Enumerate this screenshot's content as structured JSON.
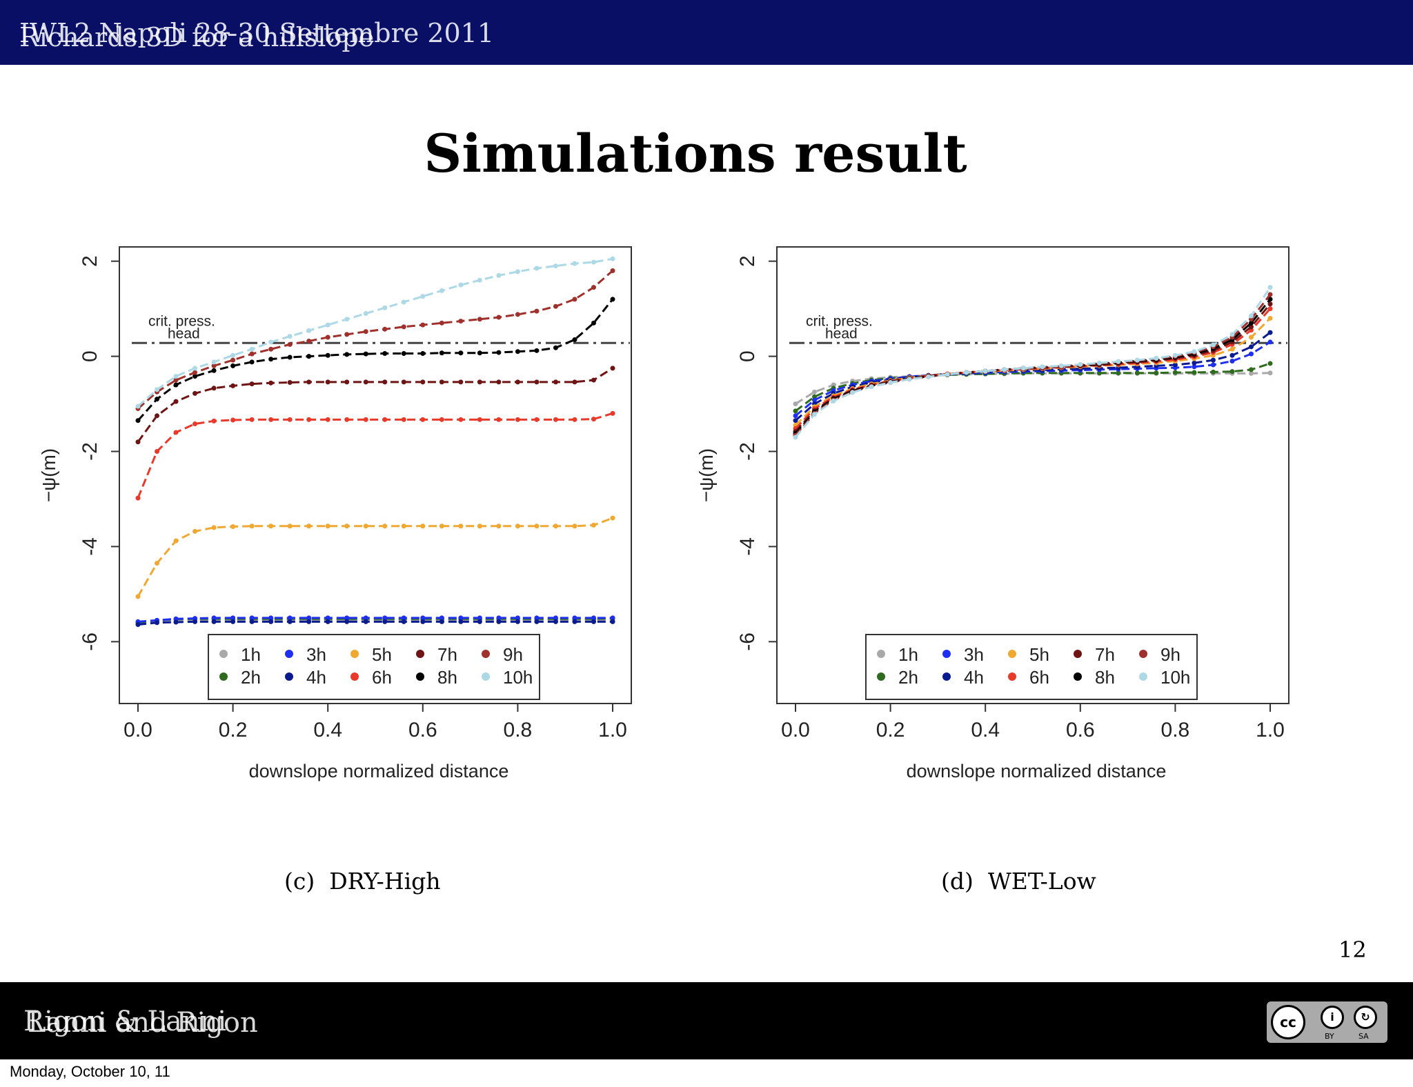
{
  "header": {
    "conference": "IWL2 Napoli 28-30 Settembre 2011",
    "talk_title": "Richards 3D for a hillslope"
  },
  "slide": {
    "title": "Simulations result",
    "page_number": "12"
  },
  "footer": {
    "author_a": "Rigon & Lanni",
    "author_b": "Lanni and Rigon",
    "date": "Monday, October 10, 11",
    "license_badge": {
      "by": "BY",
      "sa": "SA",
      "cc": "cc"
    }
  },
  "colors": {
    "header_bg": "#0a0f66",
    "footer_bg": "#000000",
    "1h": "#a9a9a9",
    "2h": "#2f6b1f",
    "3h": "#1f2ff0",
    "4h": "#0a1a8f",
    "5h": "#f0a830",
    "6h": "#e8392b",
    "7h": "#6e1414",
    "8h": "#000000",
    "9h": "#a0302c",
    "10h": "#add8e6"
  },
  "chart_data": [
    {
      "type": "line",
      "caption_label": "(c)",
      "caption_text": "DRY-High",
      "xlabel": "downslope normalized distance",
      "ylabel": "−ψ(m)",
      "xlim": [
        0,
        1
      ],
      "ylim": [
        -7.3,
        2.3
      ],
      "xticks": [
        "0.0",
        "0.2",
        "0.4",
        "0.6",
        "0.8",
        "1.0"
      ],
      "yticks": [
        "-6",
        "-4",
        "-2",
        "0",
        "2"
      ],
      "annotation": {
        "line1": "crit. press.",
        "line2": "head",
        "value": 0.28
      },
      "legend": {
        "position": "bottom-center",
        "entries": [
          "1h",
          "3h",
          "5h",
          "7h",
          "9h",
          "2h",
          "4h",
          "6h",
          "8h",
          "10h"
        ]
      },
      "x": [
        0,
        0.04,
        0.08,
        0.12,
        0.16,
        0.2,
        0.24,
        0.28,
        0.32,
        0.36,
        0.4,
        0.44,
        0.48,
        0.52,
        0.56,
        0.6,
        0.64,
        0.68,
        0.72,
        0.76,
        0.8,
        0.84,
        0.88,
        0.92,
        0.96,
        1.0
      ],
      "series": [
        {
          "name": "1h",
          "values": [
            -5.62,
            -5.57,
            -5.56,
            -5.55,
            -5.55,
            -5.55,
            -5.55,
            -5.55,
            -5.55,
            -5.55,
            -5.55,
            -5.55,
            -5.55,
            -5.55,
            -5.55,
            -5.55,
            -5.55,
            -5.55,
            -5.55,
            -5.55,
            -5.55,
            -5.55,
            -5.55,
            -5.55,
            -5.55,
            -5.55
          ]
        },
        {
          "name": "2h",
          "values": [
            -5.6,
            -5.55,
            -5.53,
            -5.52,
            -5.52,
            -5.52,
            -5.52,
            -5.52,
            -5.52,
            -5.52,
            -5.52,
            -5.52,
            -5.52,
            -5.52,
            -5.52,
            -5.52,
            -5.52,
            -5.52,
            -5.52,
            -5.52,
            -5.52,
            -5.52,
            -5.52,
            -5.52,
            -5.52,
            -5.51
          ]
        },
        {
          "name": "3h",
          "values": [
            -5.58,
            -5.55,
            -5.52,
            -5.51,
            -5.5,
            -5.5,
            -5.5,
            -5.5,
            -5.5,
            -5.5,
            -5.5,
            -5.5,
            -5.5,
            -5.5,
            -5.5,
            -5.5,
            -5.5,
            -5.5,
            -5.5,
            -5.5,
            -5.5,
            -5.5,
            -5.5,
            -5.5,
            -5.5,
            -5.5
          ]
        },
        {
          "name": "4h",
          "values": [
            -5.64,
            -5.6,
            -5.59,
            -5.58,
            -5.58,
            -5.58,
            -5.58,
            -5.58,
            -5.58,
            -5.58,
            -5.58,
            -5.58,
            -5.58,
            -5.58,
            -5.58,
            -5.58,
            -5.58,
            -5.58,
            -5.58,
            -5.58,
            -5.58,
            -5.58,
            -5.58,
            -5.58,
            -5.58,
            -5.58
          ]
        },
        {
          "name": "5h",
          "values": [
            -5.05,
            -4.35,
            -3.88,
            -3.68,
            -3.6,
            -3.58,
            -3.57,
            -3.57,
            -3.57,
            -3.57,
            -3.57,
            -3.57,
            -3.57,
            -3.57,
            -3.57,
            -3.57,
            -3.57,
            -3.57,
            -3.57,
            -3.57,
            -3.57,
            -3.57,
            -3.57,
            -3.57,
            -3.55,
            -3.4
          ]
        },
        {
          "name": "6h",
          "values": [
            -2.98,
            -2.0,
            -1.6,
            -1.42,
            -1.36,
            -1.34,
            -1.33,
            -1.33,
            -1.33,
            -1.33,
            -1.33,
            -1.33,
            -1.33,
            -1.33,
            -1.33,
            -1.33,
            -1.33,
            -1.33,
            -1.33,
            -1.33,
            -1.33,
            -1.33,
            -1.33,
            -1.33,
            -1.32,
            -1.2
          ]
        },
        {
          "name": "7h",
          "values": [
            -1.8,
            -1.25,
            -0.95,
            -0.78,
            -0.67,
            -0.62,
            -0.58,
            -0.56,
            -0.55,
            -0.54,
            -0.54,
            -0.54,
            -0.54,
            -0.54,
            -0.54,
            -0.54,
            -0.54,
            -0.54,
            -0.54,
            -0.54,
            -0.54,
            -0.54,
            -0.54,
            -0.54,
            -0.5,
            -0.25
          ]
        },
        {
          "name": "8h",
          "values": [
            -1.35,
            -0.9,
            -0.6,
            -0.42,
            -0.3,
            -0.2,
            -0.12,
            -0.06,
            -0.02,
            0.0,
            0.02,
            0.04,
            0.05,
            0.06,
            0.06,
            0.06,
            0.07,
            0.07,
            0.07,
            0.08,
            0.1,
            0.12,
            0.18,
            0.35,
            0.7,
            1.2
          ]
        },
        {
          "name": "9h",
          "values": [
            -1.1,
            -0.75,
            -0.5,
            -0.34,
            -0.2,
            -0.08,
            0.05,
            0.15,
            0.25,
            0.32,
            0.4,
            0.46,
            0.52,
            0.57,
            0.62,
            0.66,
            0.7,
            0.74,
            0.78,
            0.82,
            0.88,
            0.95,
            1.05,
            1.2,
            1.45,
            1.8
          ]
        },
        {
          "name": "10h",
          "values": [
            -1.05,
            -0.7,
            -0.42,
            -0.25,
            -0.12,
            0.02,
            0.15,
            0.3,
            0.42,
            0.54,
            0.66,
            0.78,
            0.9,
            1.02,
            1.14,
            1.26,
            1.38,
            1.5,
            1.6,
            1.7,
            1.78,
            1.85,
            1.9,
            1.95,
            1.98,
            2.05
          ]
        }
      ]
    },
    {
      "type": "line",
      "caption_label": "(d)",
      "caption_text": "WET-Low",
      "xlabel": "downslope normalized distance",
      "ylabel": "−ψ(m)",
      "xlim": [
        0,
        1
      ],
      "ylim": [
        -7.3,
        2.3
      ],
      "xticks": [
        "0.0",
        "0.2",
        "0.4",
        "0.6",
        "0.8",
        "1.0"
      ],
      "yticks": [
        "-6",
        "-4",
        "-2",
        "0",
        "2"
      ],
      "annotation": {
        "line1": "crit. press.",
        "line2": "head",
        "value": 0.28
      },
      "legend": {
        "position": "bottom-center",
        "entries": [
          "1h",
          "3h",
          "5h",
          "7h",
          "9h",
          "2h",
          "4h",
          "6h",
          "8h",
          "10h"
        ]
      },
      "x": [
        0,
        0.04,
        0.08,
        0.12,
        0.16,
        0.2,
        0.24,
        0.28,
        0.32,
        0.36,
        0.4,
        0.44,
        0.48,
        0.52,
        0.56,
        0.6,
        0.64,
        0.68,
        0.72,
        0.76,
        0.8,
        0.84,
        0.88,
        0.92,
        0.96,
        1.0
      ],
      "series": [
        {
          "name": "1h",
          "values": [
            -1.0,
            -0.75,
            -0.6,
            -0.52,
            -0.47,
            -0.44,
            -0.42,
            -0.4,
            -0.39,
            -0.38,
            -0.37,
            -0.37,
            -0.36,
            -0.36,
            -0.36,
            -0.36,
            -0.36,
            -0.36,
            -0.36,
            -0.36,
            -0.36,
            -0.36,
            -0.36,
            -0.36,
            -0.36,
            -0.35
          ]
        },
        {
          "name": "2h",
          "values": [
            -1.15,
            -0.85,
            -0.67,
            -0.57,
            -0.5,
            -0.46,
            -0.43,
            -0.41,
            -0.39,
            -0.38,
            -0.37,
            -0.36,
            -0.35,
            -0.35,
            -0.35,
            -0.35,
            -0.35,
            -0.35,
            -0.35,
            -0.35,
            -0.34,
            -0.34,
            -0.33,
            -0.32,
            -0.28,
            -0.15
          ]
        },
        {
          "name": "3h",
          "values": [
            -1.25,
            -0.92,
            -0.72,
            -0.6,
            -0.52,
            -0.47,
            -0.43,
            -0.4,
            -0.38,
            -0.36,
            -0.35,
            -0.33,
            -0.32,
            -0.31,
            -0.3,
            -0.29,
            -0.28,
            -0.27,
            -0.26,
            -0.25,
            -0.24,
            -0.22,
            -0.18,
            -0.1,
            0.05,
            0.3
          ]
        },
        {
          "name": "4h",
          "values": [
            -1.35,
            -1.0,
            -0.78,
            -0.64,
            -0.55,
            -0.49,
            -0.44,
            -0.4,
            -0.37,
            -0.35,
            -0.33,
            -0.31,
            -0.3,
            -0.29,
            -0.27,
            -0.26,
            -0.25,
            -0.24,
            -0.22,
            -0.2,
            -0.18,
            -0.14,
            -0.08,
            0.02,
            0.2,
            0.5
          ]
        },
        {
          "name": "5h",
          "values": [
            -1.45,
            -1.06,
            -0.83,
            -0.68,
            -0.58,
            -0.51,
            -0.45,
            -0.41,
            -0.37,
            -0.34,
            -0.32,
            -0.3,
            -0.28,
            -0.26,
            -0.24,
            -0.22,
            -0.2,
            -0.18,
            -0.16,
            -0.14,
            -0.1,
            -0.05,
            0.02,
            0.15,
            0.4,
            0.8
          ]
        },
        {
          "name": "6h",
          "values": [
            -1.52,
            -1.1,
            -0.86,
            -0.7,
            -0.6,
            -0.52,
            -0.46,
            -0.41,
            -0.37,
            -0.34,
            -0.31,
            -0.29,
            -0.27,
            -0.25,
            -0.23,
            -0.21,
            -0.19,
            -0.17,
            -0.14,
            -0.11,
            -0.07,
            -0.01,
            0.08,
            0.25,
            0.55,
            1.0
          ]
        },
        {
          "name": "7h",
          "values": [
            -1.58,
            -1.14,
            -0.88,
            -0.72,
            -0.61,
            -0.53,
            -0.47,
            -0.42,
            -0.38,
            -0.34,
            -0.31,
            -0.28,
            -0.26,
            -0.24,
            -0.22,
            -0.2,
            -0.18,
            -0.15,
            -0.12,
            -0.09,
            -0.04,
            0.02,
            0.12,
            0.3,
            0.62,
            1.1
          ]
        },
        {
          "name": "8h",
          "values": [
            -1.62,
            -1.17,
            -0.9,
            -0.73,
            -0.62,
            -0.54,
            -0.47,
            -0.42,
            -0.38,
            -0.34,
            -0.31,
            -0.28,
            -0.25,
            -0.23,
            -0.21,
            -0.19,
            -0.16,
            -0.13,
            -0.1,
            -0.07,
            -0.02,
            0.05,
            0.16,
            0.35,
            0.7,
            1.2
          ]
        },
        {
          "name": "9h",
          "values": [
            -1.66,
            -1.2,
            -0.92,
            -0.75,
            -0.63,
            -0.55,
            -0.48,
            -0.43,
            -0.38,
            -0.34,
            -0.31,
            -0.28,
            -0.25,
            -0.23,
            -0.21,
            -0.18,
            -0.15,
            -0.12,
            -0.09,
            -0.05,
            0.0,
            0.08,
            0.2,
            0.4,
            0.78,
            1.3
          ]
        },
        {
          "name": "10h",
          "values": [
            -1.7,
            -1.22,
            -0.94,
            -0.76,
            -0.64,
            -0.55,
            -0.48,
            -0.43,
            -0.38,
            -0.34,
            -0.31,
            -0.28,
            -0.25,
            -0.22,
            -0.2,
            -0.17,
            -0.14,
            -0.11,
            -0.08,
            -0.04,
            0.02,
            0.1,
            0.24,
            0.46,
            0.85,
            1.45
          ]
        }
      ]
    }
  ]
}
